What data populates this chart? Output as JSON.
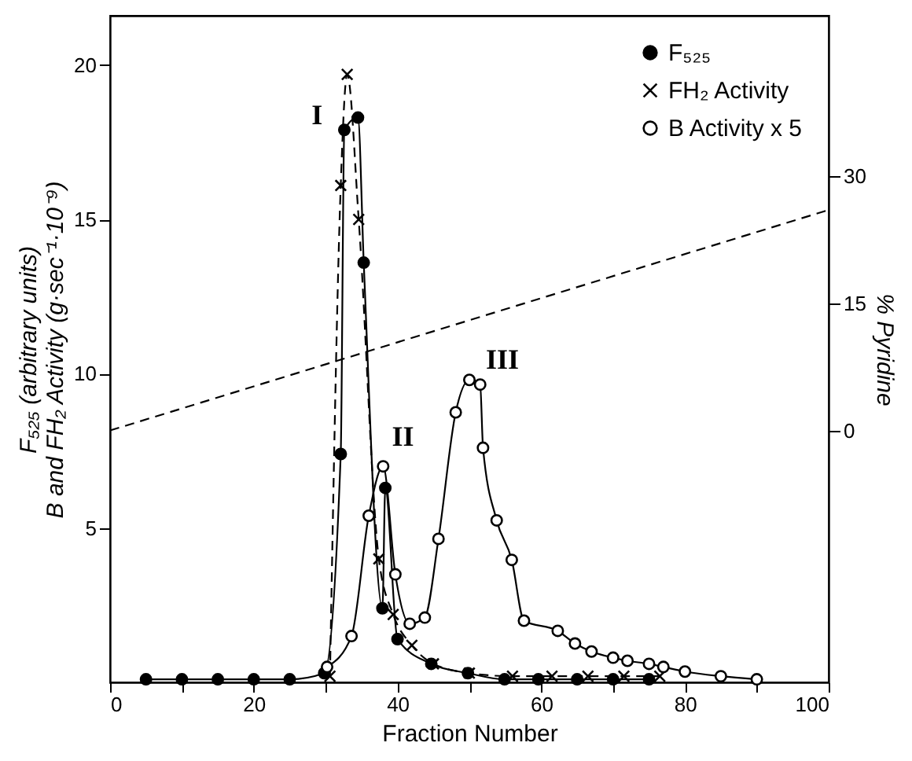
{
  "chart_data": {
    "type": "line",
    "xlabel": "Fraction Number",
    "ylabel": "F₅₂₅ (arbitrary units)\nB and FH₂ Activity (g·sec⁻¹·10⁻⁹)",
    "y2label": "% Pyridine",
    "xlim": [
      0,
      100
    ],
    "xticks": [
      0,
      {
        "value": 10,
        "label": null
      },
      20,
      {
        "value": 30,
        "label": null
      },
      40,
      {
        "value": 50,
        "label": null
      },
      60,
      {
        "value": 70,
        "label": null
      },
      80,
      {
        "value": 90,
        "label": null
      },
      100
    ],
    "ylim": [
      0,
      21.6
    ],
    "yticks": [
      5,
      10,
      15,
      20
    ],
    "y2lim": [
      -29.7,
      48.9
    ],
    "y2ticks": [
      0,
      15,
      30
    ],
    "grid": false,
    "legend": "top right",
    "series": [
      {
        "name": "F₅₂₅",
        "color": "#000000",
        "marker": "circle",
        "line_style": "solid",
        "x": [
          5,
          10,
          15,
          20,
          25,
          29.8,
          32.1,
          32.6,
          34.5,
          35.3,
          37.9,
          38.3,
          40,
          44.7,
          49.8,
          54.9,
          59.6,
          65,
          70,
          75
        ],
        "values": [
          0.1,
          0.1,
          0.1,
          0.1,
          0.1,
          0.3,
          7.4,
          17.9,
          18.3,
          13.6,
          2.4,
          6.3,
          1.4,
          0.6,
          0.3,
          0.1,
          0.1,
          0.1,
          0.1,
          0.1
        ]
      },
      {
        "name": "FH₂ Activity",
        "color": "#000000",
        "marker": "cross",
        "line_style": "dashed",
        "x": [
          30.6,
          32.1,
          33,
          34.6,
          37.4,
          39.4,
          42,
          45,
          50,
          56,
          61.5,
          66.5,
          71.5,
          76.5
        ],
        "values": [
          0.2,
          16.1,
          19.7,
          15,
          4,
          2.2,
          1.2,
          0.6,
          0.3,
          0.2,
          0.2,
          0.2,
          0.2,
          0.2
        ]
      },
      {
        "name": "B Activity x 5",
        "color": "#000000",
        "marker": "circle",
        "line_style": "solid",
        "x": [
          30.2,
          33.6,
          36,
          38,
          39.7,
          41.7,
          43.8,
          45.7,
          48.1,
          50,
          51.5,
          51.9,
          53.8,
          55.9,
          57.6,
          62.3,
          64.7,
          67,
          70,
          72,
          75,
          77,
          80,
          85,
          90
        ],
        "values": [
          0.5,
          1.5,
          5.4,
          7,
          3.5,
          1.9,
          2.1,
          4.65,
          8.75,
          9.8,
          9.65,
          7.6,
          5.25,
          3.97,
          2,
          1.67,
          1.26,
          1,
          0.8,
          0.7,
          0.6,
          0.5,
          0.35,
          0.2,
          0.1
        ]
      },
      {
        "color": "#000000",
        "axis": "y2",
        "marker": "none",
        "line_style": "dashed",
        "x": [
          0,
          100
        ],
        "values": [
          0,
          26
        ]
      }
    ],
    "annotations": [
      {
        "text": "I",
        "x": 32.3,
        "y": 16.8
      },
      {
        "text": "II",
        "x": 39,
        "y": 6.6
      },
      {
        "text": "III",
        "x": 52.4,
        "y": 9
      }
    ]
  }
}
